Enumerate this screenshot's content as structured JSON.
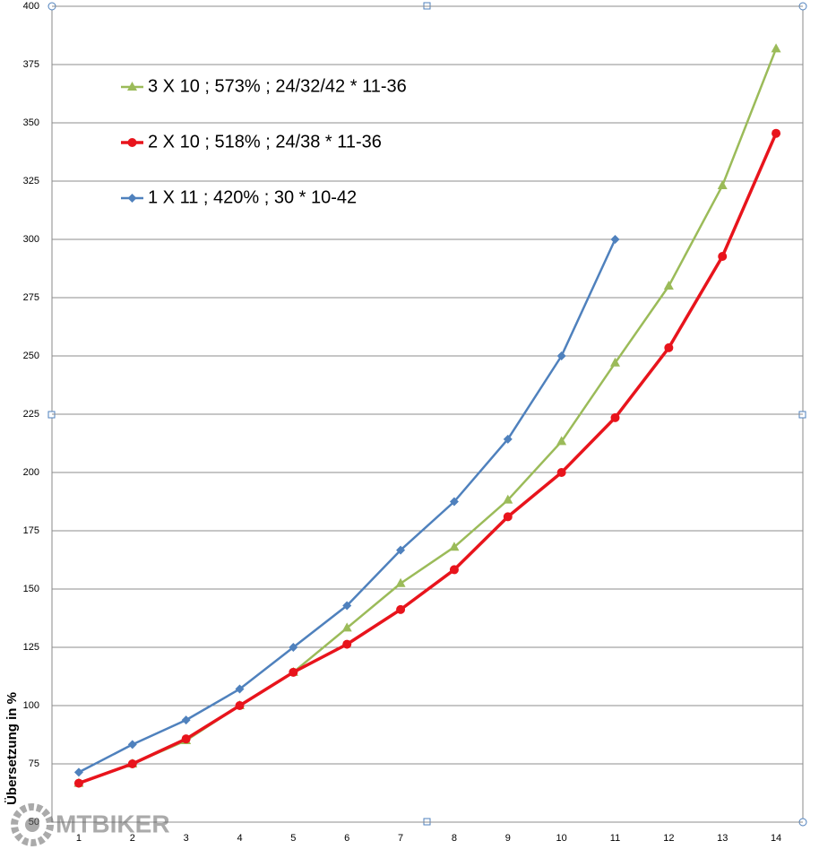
{
  "chart_data": {
    "type": "line",
    "y_label": "Übersetzung  in  %",
    "categories": [
      "1",
      "2",
      "3",
      "4",
      "5",
      "6",
      "7",
      "8",
      "9",
      "10",
      "11",
      "12",
      "13",
      "14"
    ],
    "series": [
      {
        "name": "3 X 10 ; 573% ; 24/32/42 * 11-36",
        "color": "#9bbb59",
        "marker": "triangle",
        "values": [
          66.7,
          75,
          85,
          100,
          114.3,
          133.3,
          152.4,
          168,
          188.2,
          213.3,
          247,
          280,
          323.1,
          381.8
        ]
      },
      {
        "name": "2 X 10 ; 518% ; 24/38 * 11-36",
        "color": "#e8141c",
        "marker": "circle",
        "values": [
          66.7,
          75,
          85.7,
          100,
          114.3,
          126.3,
          141.2,
          158.3,
          181,
          200,
          223.5,
          253.5,
          292.7,
          345.5
        ]
      },
      {
        "name": "1 X 11 ; 420% ; 30 * 10-42",
        "color": "#4f81bd",
        "marker": "diamond",
        "values": [
          71.4,
          83.3,
          93.8,
          107.1,
          125,
          142.9,
          166.7,
          187.5,
          214.3,
          250,
          300,
          null,
          null,
          null
        ]
      }
    ],
    "ylim": [
      50,
      400
    ],
    "yticks": [
      50,
      75,
      100,
      125,
      150,
      175,
      200,
      225,
      250,
      275,
      300,
      325,
      350,
      375,
      400
    ],
    "grid": true,
    "legend": "upper left"
  },
  "watermark": "MTBIKER"
}
